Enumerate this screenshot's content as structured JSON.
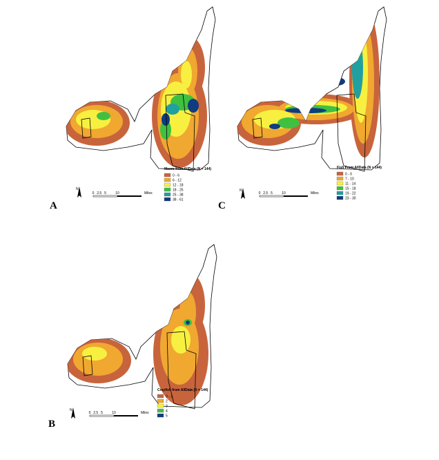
{
  "panels": [
    {
      "label": "A",
      "legend": {
        "title": "Macro from AllData (N = 144)",
        "items": [
          {
            "label": "0 - 6",
            "color": "#c8643c"
          },
          {
            "label": "6 - 12",
            "color": "#f0a830"
          },
          {
            "label": "12 - 18",
            "color": "#f8f040"
          },
          {
            "label": "18 - 25",
            "color": "#40c040"
          },
          {
            "label": "25 - 38",
            "color": "#20a0a0"
          },
          {
            "label": "38 - 61",
            "color": "#103c80"
          }
        ]
      },
      "north": "N",
      "scale": [
        "0",
        "2.5",
        "5",
        "10",
        "Miles"
      ]
    },
    {
      "label": "C",
      "legend": {
        "title": "Fish From AllData (N = 144)",
        "items": [
          {
            "label": "0 - 6",
            "color": "#c8643c"
          },
          {
            "label": "7 - 10",
            "color": "#f0a830"
          },
          {
            "label": "11 - 14",
            "color": "#f8f040"
          },
          {
            "label": "15 - 18",
            "color": "#40c040"
          },
          {
            "label": "19 - 22",
            "color": "#20a0a0"
          },
          {
            "label": "23 - 30",
            "color": "#103c80"
          }
        ]
      },
      "north": "N",
      "scale": [
        "0",
        "2.5",
        "5",
        "10",
        "Miles"
      ]
    },
    {
      "label": "B",
      "legend": {
        "title": "Crayfish from AllData (N = 144)",
        "items": [
          {
            "label": "0 - 1",
            "color": "#c8643c"
          },
          {
            "label": "2",
            "color": "#f0a830"
          },
          {
            "label": "3",
            "color": "#f8f040"
          },
          {
            "label": "4",
            "color": "#40c040"
          },
          {
            "label": "5",
            "color": "#103c80"
          }
        ]
      },
      "north": "N",
      "scale": [
        "0",
        "2.5",
        "5",
        "10",
        "Miles"
      ]
    }
  ]
}
